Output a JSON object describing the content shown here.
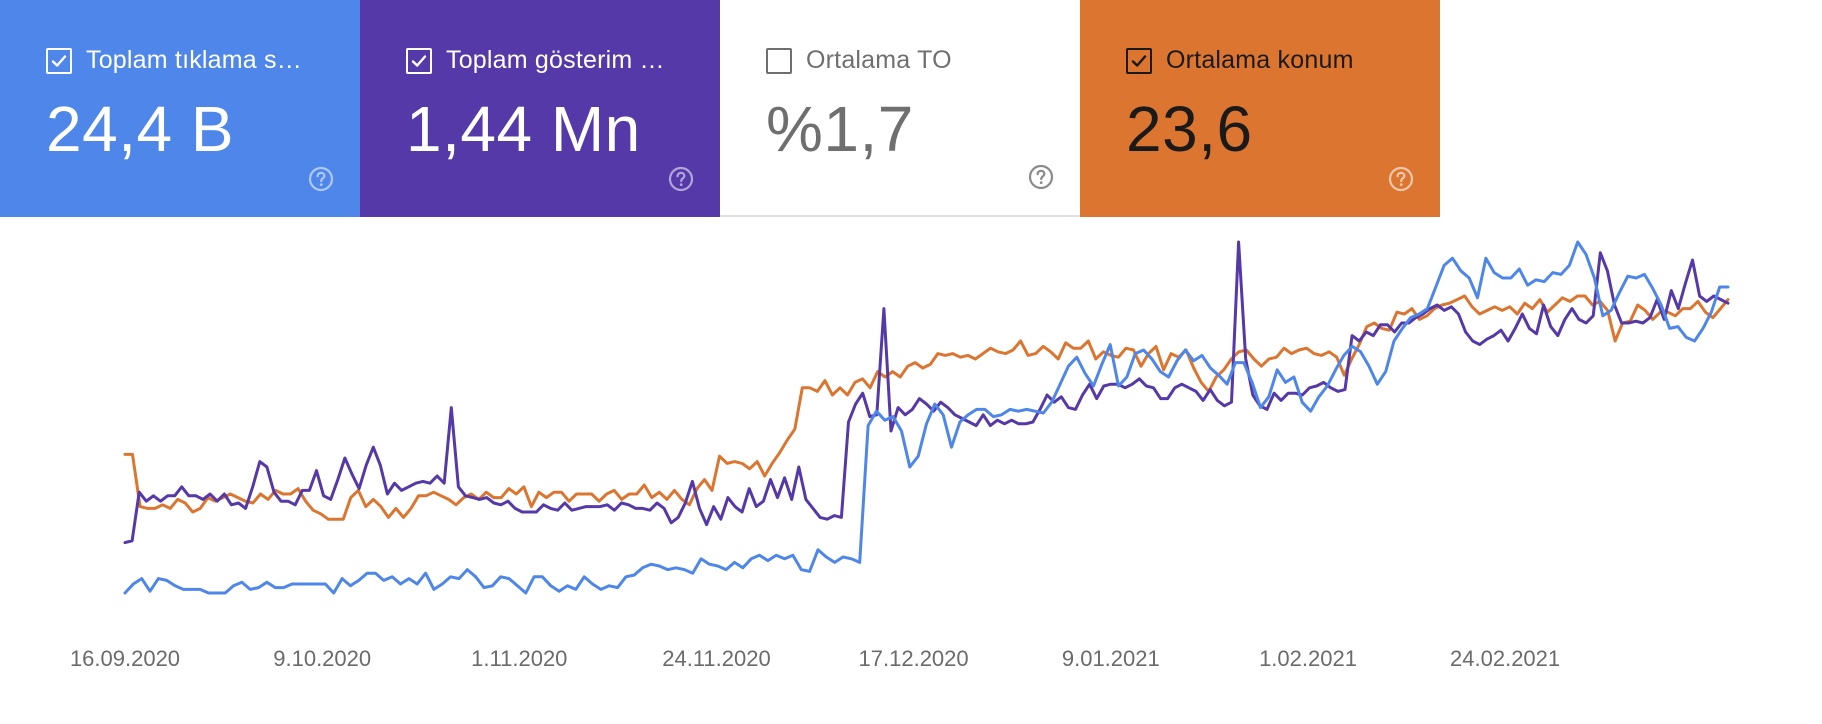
{
  "cards": [
    {
      "label": "Toplam tıklama s…",
      "value": "24,4 B",
      "checked": true,
      "color": "#4e86ea"
    },
    {
      "label": "Toplam gösterim …",
      "value": "1,44 Mn",
      "checked": true,
      "color": "#5539a8"
    },
    {
      "label": "Ortalama TO",
      "value": "%1,7",
      "checked": false,
      "color": "#ffffff"
    },
    {
      "label": "Ortalama konum",
      "value": "23,6",
      "checked": true,
      "color": "#db7530"
    }
  ],
  "chart_data": {
    "type": "line",
    "x_ticks": [
      "16.09.2020",
      "9.10.2020",
      "1.11.2020",
      "24.11.2020",
      "17.12.2020",
      "9.01.2021",
      "1.02.2021",
      "24.02.2021"
    ],
    "x_range": [
      "16.09.2020",
      "22.03.2021"
    ],
    "grid": false,
    "series": [
      {
        "color": "#db7530",
        "values": [
          0.77,
          0.77,
          0.48,
          0.47,
          0.47,
          0.49,
          0.47,
          0.52,
          0.5,
          0.45,
          0.47,
          0.53,
          0.51,
          0.53,
          0.55,
          0.53,
          0.51,
          0.5,
          0.55,
          0.52,
          0.57,
          0.55,
          0.55,
          0.58,
          0.51,
          0.46,
          0.44,
          0.41,
          0.41,
          0.41,
          0.53,
          0.57,
          0.48,
          0.52,
          0.48,
          0.42,
          0.47,
          0.42,
          0.47,
          0.54,
          0.54,
          0.56,
          0.54,
          0.52,
          0.49,
          0.53,
          0.55,
          0.52,
          0.56,
          0.53,
          0.53,
          0.58,
          0.55,
          0.59,
          0.48,
          0.56,
          0.53,
          0.56,
          0.56,
          0.51,
          0.55,
          0.55,
          0.55,
          0.51,
          0.55,
          0.57,
          0.52,
          0.55,
          0.55,
          0.6,
          0.53,
          0.56,
          0.52,
          0.57,
          0.52,
          0.49,
          0.58,
          0.63,
          0.57,
          0.76,
          0.72,
          0.73,
          0.72,
          0.69,
          0.73,
          0.65,
          0.72,
          0.78,
          0.85,
          0.91,
          1.14,
          1.14,
          1.12,
          1.18,
          1.1,
          1.14,
          1.1,
          1.17,
          1.19,
          1.14,
          1.23,
          1.2,
          1.23,
          1.2,
          1.26,
          1.28,
          1.25,
          1.27,
          1.33,
          1.32,
          1.33,
          1.31,
          1.32,
          1.3,
          1.33,
          1.36,
          1.34,
          1.33,
          1.35,
          1.4,
          1.32,
          1.33,
          1.37,
          1.34,
          1.3,
          1.39,
          1.36,
          1.36,
          1.4,
          1.3,
          1.34,
          1.32,
          1.31,
          1.36,
          1.35,
          1.26,
          1.33,
          1.37,
          1.24,
          1.33,
          1.31,
          1.35,
          1.25,
          1.17,
          1.12,
          1.2,
          1.24,
          1.3,
          1.34,
          1.35,
          1.3,
          1.26,
          1.3,
          1.31,
          1.36,
          1.33,
          1.35,
          1.36,
          1.33,
          1.32,
          1.34,
          1.31,
          1.21,
          1.3,
          1.38,
          1.48,
          1.5,
          1.47,
          1.46,
          1.56,
          1.55,
          1.58,
          1.52,
          1.54,
          1.58,
          1.6,
          1.61,
          1.63,
          1.65,
          1.59,
          1.55,
          1.57,
          1.59,
          1.57,
          1.59,
          1.55,
          1.61,
          1.58,
          1.63,
          1.56,
          1.6,
          1.64,
          1.62,
          1.65,
          1.65,
          1.6,
          1.62,
          1.57,
          1.4,
          1.5,
          1.51,
          1.6,
          1.57,
          1.52,
          1.56,
          1.56,
          1.54,
          1.58,
          1.58,
          1.62,
          1.56,
          1.53,
          1.58,
          1.63
        ]
      },
      {
        "color": "#5539a8",
        "values": [
          0.28,
          0.29,
          0.56,
          0.51,
          0.54,
          0.51,
          0.54,
          0.54,
          0.59,
          0.54,
          0.54,
          0.52,
          0.55,
          0.51,
          0.55,
          0.49,
          0.5,
          0.47,
          0.59,
          0.73,
          0.7,
          0.56,
          0.51,
          0.51,
          0.49,
          0.57,
          0.57,
          0.68,
          0.54,
          0.52,
          0.63,
          0.75,
          0.66,
          0.58,
          0.71,
          0.81,
          0.71,
          0.55,
          0.61,
          0.57,
          0.59,
          0.61,
          0.62,
          0.61,
          0.65,
          0.61,
          1.03,
          0.59,
          0.54,
          0.53,
          0.52,
          0.53,
          0.5,
          0.49,
          0.51,
          0.47,
          0.45,
          0.45,
          0.45,
          0.49,
          0.47,
          0.46,
          0.5,
          0.46,
          0.47,
          0.48,
          0.48,
          0.48,
          0.49,
          0.46,
          0.5,
          0.49,
          0.47,
          0.47,
          0.46,
          0.5,
          0.47,
          0.39,
          0.42,
          0.5,
          0.62,
          0.47,
          0.38,
          0.48,
          0.41,
          0.53,
          0.48,
          0.45,
          0.58,
          0.48,
          0.51,
          0.63,
          0.53,
          0.64,
          0.52,
          0.7,
          0.52,
          0.47,
          0.42,
          0.41,
          0.43,
          0.42,
          0.95,
          1.05,
          1.11,
          0.98,
          0.99,
          1.58,
          0.9,
          1.03,
          0.99,
          1.02,
          1.08,
          1.05,
          1.01,
          1.06,
          1.03,
          0.99,
          0.97,
          0.95,
          0.93,
          0.99,
          0.93,
          0.96,
          0.94,
          0.96,
          0.94,
          0.94,
          0.95,
          1.02,
          1.1,
          1.06,
          1.09,
          1.03,
          1.02,
          1.1,
          1.16,
          1.08,
          1.15,
          1.16,
          1.16,
          1.14,
          1.16,
          1.19,
          1.15,
          1.14,
          1.08,
          1.08,
          1.14,
          1.16,
          1.14,
          1.12,
          1.07,
          1.13,
          1.07,
          1.04,
          1.06,
          1.95,
          1.3,
          1.1,
          1.04,
          1.02,
          1.11,
          1.07,
          1.11,
          1.11,
          1.1,
          1.14,
          1.15,
          1.17,
          1.14,
          1.12,
          1.13,
          1.43,
          1.4,
          1.45,
          1.43,
          1.49,
          1.49,
          1.45,
          1.5,
          1.5,
          1.53,
          1.55,
          1.58,
          1.6,
          1.57,
          1.59,
          1.55,
          1.45,
          1.4,
          1.38,
          1.41,
          1.43,
          1.46,
          1.4,
          1.47,
          1.55,
          1.47,
          1.44,
          1.6,
          1.48,
          1.43,
          1.52,
          1.58,
          1.52,
          1.5,
          1.54,
          1.89,
          1.79,
          1.6,
          1.5,
          1.5,
          1.51,
          1.5,
          1.53,
          1.63,
          1.52,
          1.68,
          1.58,
          1.72,
          1.85,
          1.65,
          1.62,
          1.65,
          1.63,
          1.61
        ]
      },
      {
        "color": "#4e86ea",
        "values": [
          0.0,
          0.05,
          0.08,
          0.01,
          0.08,
          0.07,
          0.04,
          0.02,
          0.02,
          0.02,
          0.0,
          0.0,
          0.0,
          0.04,
          0.06,
          0.02,
          0.03,
          0.06,
          0.03,
          0.03,
          0.05,
          0.05,
          0.05,
          0.05,
          0.05,
          0.0,
          0.08,
          0.04,
          0.07,
          0.11,
          0.11,
          0.07,
          0.09,
          0.05,
          0.08,
          0.05,
          0.11,
          0.02,
          0.05,
          0.09,
          0.08,
          0.13,
          0.09,
          0.03,
          0.04,
          0.09,
          0.08,
          0.04,
          0.0,
          0.09,
          0.09,
          0.04,
          0.01,
          0.04,
          0.02,
          0.09,
          0.05,
          0.02,
          0.04,
          0.03,
          0.09,
          0.1,
          0.14,
          0.16,
          0.15,
          0.13,
          0.14,
          0.13,
          0.11,
          0.19,
          0.16,
          0.15,
          0.13,
          0.17,
          0.14,
          0.19,
          0.21,
          0.18,
          0.21,
          0.19,
          0.21,
          0.13,
          0.12,
          0.24,
          0.2,
          0.17,
          0.2,
          0.19,
          0.17,
          0.93,
          1.01,
          0.96,
          0.98,
          0.9,
          0.7,
          0.76,
          0.94,
          1.05,
          0.99,
          0.81,
          0.95,
          0.99,
          1.02,
          1.02,
          0.98,
          0.99,
          1.02,
          1.01,
          1.02,
          1.01,
          1.0,
          1.06,
          1.16,
          1.26,
          1.31,
          1.22,
          1.15,
          1.27,
          1.38,
          1.15,
          1.2,
          1.33,
          1.35,
          1.3,
          1.23,
          1.2,
          1.29,
          1.35,
          1.29,
          1.32,
          1.25,
          1.21,
          1.16,
          1.28,
          1.28,
          1.17,
          1.03,
          1.09,
          1.24,
          1.17,
          1.2,
          1.06,
          1.01,
          1.09,
          1.15,
          1.24,
          1.32,
          1.37,
          1.34,
          1.26,
          1.16,
          1.23,
          1.4,
          1.47,
          1.53,
          1.55,
          1.58,
          1.7,
          1.82,
          1.86,
          1.79,
          1.75,
          1.64,
          1.86,
          1.78,
          1.75,
          1.75,
          1.8,
          1.71,
          1.74,
          1.73,
          1.78,
          1.77,
          1.82,
          1.95,
          1.88,
          1.75,
          1.54,
          1.57,
          1.67,
          1.76,
          1.75,
          1.77,
          1.69,
          1.6,
          1.47,
          1.48,
          1.42,
          1.4,
          1.47,
          1.56,
          1.7,
          1.7
        ]
      }
    ]
  }
}
